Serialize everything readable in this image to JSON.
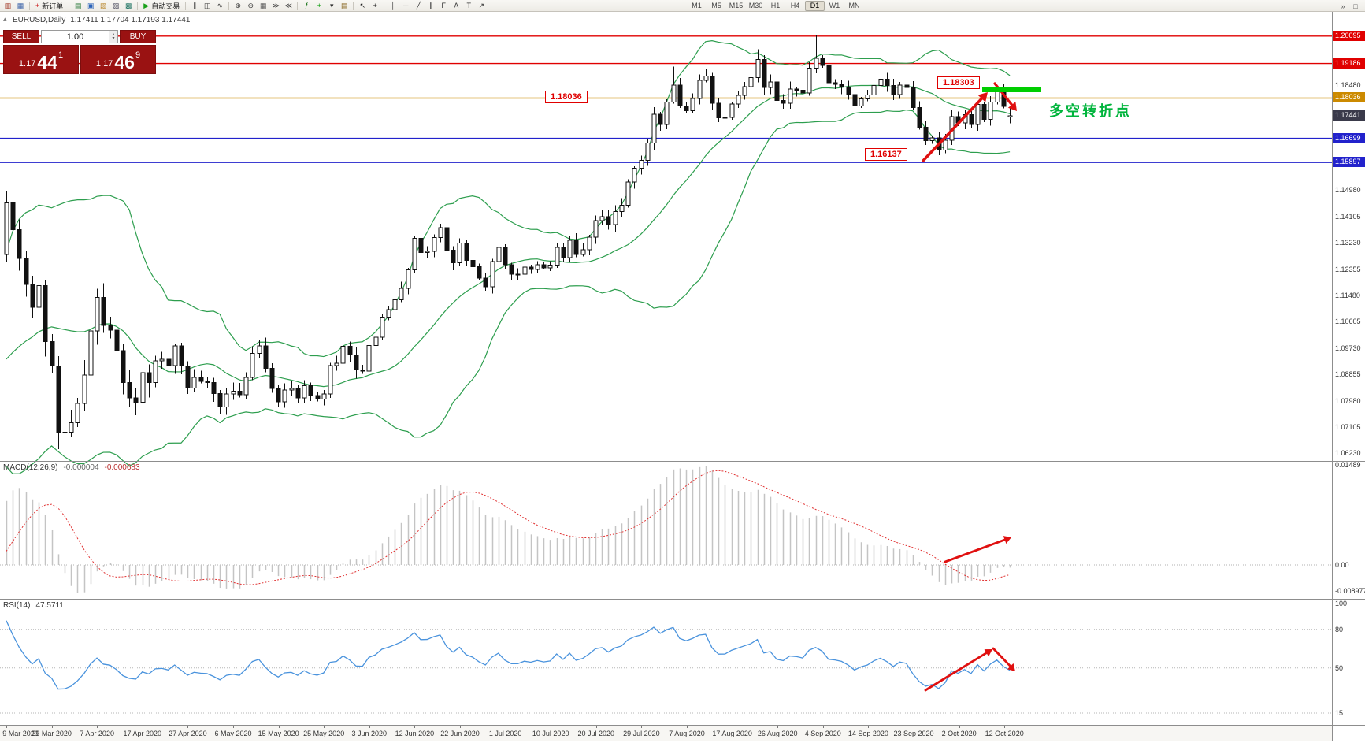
{
  "icons": {
    "one_click_toggle": "▴",
    "spin_up": "▴",
    "spin_down": "▾"
  },
  "toolbar": {
    "items": [
      {
        "name": "new-chart-icon",
        "glyph": "▥",
        "color": "#a33c2a"
      },
      {
        "name": "chart-profiles-icon",
        "glyph": "▦",
        "color": "#3a62a8"
      },
      {
        "type": "sep"
      },
      {
        "name": "new-order-button",
        "type": "button",
        "glyph": "+",
        "glyph_color": "#cc2222",
        "label": "新订单"
      },
      {
        "type": "sep"
      },
      {
        "name": "market-watch-icon",
        "glyph": "▤",
        "color": "#2a7a3a"
      },
      {
        "name": "data-window-icon",
        "glyph": "▣",
        "color": "#2a62b8"
      },
      {
        "name": "navigator-icon",
        "glyph": "▧",
        "color": "#b8862a"
      },
      {
        "name": "terminal-icon",
        "glyph": "▨",
        "color": "#555566"
      },
      {
        "name": "strategy-tester-icon",
        "glyph": "▩",
        "color": "#2a7a6a"
      },
      {
        "type": "sep"
      },
      {
        "name": "autotrading-button",
        "type": "button",
        "glyph": "▶",
        "glyph_color": "#1aa11a",
        "label": "自动交易"
      },
      {
        "type": "sep"
      },
      {
        "name": "bar-chart-icon",
        "glyph": "∥",
        "color": "#333333"
      },
      {
        "name": "candlestick-chart-icon",
        "glyph": "◫",
        "color": "#333333"
      },
      {
        "name": "line-chart-icon",
        "glyph": "∿",
        "color": "#333333"
      },
      {
        "type": "sep"
      },
      {
        "name": "zoom-in-icon",
        "glyph": "⊕",
        "color": "#333333"
      },
      {
        "name": "zoom-out-icon",
        "glyph": "⊖",
        "color": "#333333"
      },
      {
        "name": "tile-windows-icon",
        "glyph": "▦",
        "color": "#555555"
      },
      {
        "name": "auto-scroll-icon",
        "glyph": "≫",
        "color": "#333333"
      },
      {
        "name": "chart-shift-icon",
        "glyph": "≪",
        "color": "#333333"
      },
      {
        "type": "sep"
      },
      {
        "name": "indicators-icon",
        "glyph": "ƒ",
        "color": "#006600"
      },
      {
        "name": "add-indicator-icon",
        "glyph": "+",
        "color": "#009900"
      },
      {
        "name": "periods-list-icon",
        "glyph": "▾",
        "color": "#333333"
      },
      {
        "name": "templates-icon",
        "glyph": "▤",
        "color": "#886622"
      },
      {
        "type": "sep"
      },
      {
        "name": "cursor-icon",
        "glyph": "↖",
        "color": "#222222"
      },
      {
        "name": "crosshair-icon",
        "glyph": "+",
        "color": "#222222"
      },
      {
        "type": "sep"
      },
      {
        "name": "vertical-line-icon",
        "glyph": "│",
        "color": "#333333"
      },
      {
        "name": "horizontal-line-icon",
        "glyph": "─",
        "color": "#333333"
      },
      {
        "name": "trendline-icon",
        "glyph": "╱",
        "color": "#333333"
      },
      {
        "name": "equidistant-channel-icon",
        "glyph": "∥",
        "color": "#333333"
      },
      {
        "name": "fibonacci-icon",
        "glyph": "F",
        "color": "#333333"
      },
      {
        "name": "text-icon",
        "glyph": "A",
        "color": "#333333"
      },
      {
        "name": "text-label-icon",
        "glyph": "T",
        "color": "#333333"
      },
      {
        "name": "arrows-tool-icon",
        "glyph": "↗",
        "color": "#333333"
      }
    ],
    "timeframes": {
      "items": [
        "M1",
        "M5",
        "M15",
        "M30",
        "H1",
        "H4",
        "D1",
        "W1",
        "MN"
      ],
      "active": "D1"
    },
    "right_items": [
      {
        "name": "toolbar-overflow-icon",
        "glyph": "»",
        "color": "#555555"
      },
      {
        "name": "windows-icon",
        "glyph": "□",
        "color": "#555555"
      }
    ]
  },
  "chart": {
    "symbol_period": "EURUSD,Daily",
    "ohlc_text": "1.17411 1.17704 1.17193 1.17441"
  },
  "trade": {
    "sell_label": "SELL",
    "buy_label": "BUY",
    "lot": "1.00",
    "sell_price_prefix": "1.17",
    "sell_price_big": "44",
    "sell_price_sup": "1",
    "buy_price_prefix": "1.17",
    "buy_price_big": "46",
    "buy_price_sup": "9"
  },
  "annotations": {
    "price_box_1": "1.18036",
    "price_box_2": "1.18303",
    "price_box_3": "1.16137",
    "note_text": "多空转折点",
    "note_color": "#00b43c",
    "arrow_color": "#e01010",
    "highlight_bar_color": "#00ce00"
  },
  "chart_data": {
    "type": "candlestick",
    "symbol": "EURUSD",
    "timeframe": "Daily",
    "title_ohlc": {
      "open": "1.17411",
      "high": "1.17704",
      "low": "1.17193",
      "close": "1.17441"
    },
    "pre_closes": [
      1.091,
      1.0915,
      1.0873,
      1.084,
      1.0831,
      1.0836,
      1.0792,
      1.0786,
      1.0784,
      1.0785,
      1.0805,
      1.0851,
      1.0881,
      1.088,
      1.0887,
      1.0934,
      1.1028,
      1.1137,
      1.1138,
      1.1284
    ],
    "closes": [
      1.1456,
      1.1367,
      1.1271,
      1.1184,
      1.1109,
      1.118,
      1.0995,
      1.0914,
      1.0692,
      1.0694,
      1.0725,
      1.0789,
      1.0883,
      1.103,
      1.1141,
      1.1048,
      1.1033,
      1.0964,
      1.0858,
      1.0808,
      1.0793,
      1.0891,
      1.0858,
      1.093,
      1.0936,
      1.0915,
      1.098,
      1.0913,
      1.084,
      1.0875,
      1.0863,
      1.0858,
      1.0822,
      1.0777,
      1.082,
      1.083,
      1.0818,
      1.0875,
      1.0955,
      1.098,
      1.0906,
      1.0839,
      1.0795,
      1.0834,
      1.0839,
      1.0807,
      1.0848,
      1.0816,
      1.0803,
      1.082,
      1.0915,
      1.0923,
      1.0979,
      1.095,
      1.09,
      1.0897,
      1.0982,
      1.1009,
      1.1076,
      1.1101,
      1.1134,
      1.1172,
      1.1233,
      1.1337,
      1.1291,
      1.1294,
      1.134,
      1.1373,
      1.1298,
      1.1256,
      1.1322,
      1.1264,
      1.1244,
      1.1205,
      1.1177,
      1.126,
      1.1308,
      1.125,
      1.1218,
      1.1218,
      1.1242,
      1.1234,
      1.125,
      1.124,
      1.1248,
      1.1308,
      1.1274,
      1.1331,
      1.1284,
      1.13,
      1.1341,
      1.1397,
      1.141,
      1.1384,
      1.1427,
      1.1447,
      1.1525,
      1.157,
      1.1597,
      1.1655,
      1.175,
      1.1716,
      1.1791,
      1.1847,
      1.1778,
      1.1762,
      1.1802,
      1.1863,
      1.1877,
      1.1787,
      1.1738,
      1.1739,
      1.1784,
      1.1813,
      1.1842,
      1.1871,
      1.1932,
      1.1839,
      1.1857,
      1.1796,
      1.1786,
      1.1834,
      1.183,
      1.182,
      1.1903,
      1.1936,
      1.1912,
      1.1855,
      1.185,
      1.184,
      1.1815,
      1.1778,
      1.1801,
      1.1814,
      1.1846,
      1.1866,
      1.1846,
      1.1816,
      1.1847,
      1.1839,
      1.1772,
      1.1707,
      1.1662,
      1.1672,
      1.1631,
      1.1663,
      1.1742,
      1.1721,
      1.1748,
      1.1716,
      1.1783,
      1.1733,
      1.179,
      1.1826,
      1.1776
    ],
    "current_bar": [
      1.17411,
      1.17704,
      1.17193,
      1.17441
    ],
    "specials": {
      "0": {
        "high": 1.1495
      },
      "8": {
        "low": 1.0637
      },
      "103": {
        "high": 1.19085
      },
      "116": {
        "high": 1.19662
      },
      "125": {
        "high": 1.20113
      },
      "144": {
        "low": 1.16137
      },
      "153": {
        "high": 1.18303
      }
    },
    "bollinger": {
      "period": 20,
      "deviation": 2,
      "color": "#2d9e4e"
    },
    "horizontal_lines": [
      {
        "price": 1.20095,
        "color": "#e00000"
      },
      {
        "price": 1.19186,
        "color": "#e00000"
      },
      {
        "price": 1.18036,
        "color": "#cc8a00"
      },
      {
        "price": 1.16699,
        "color": "#2222cc"
      },
      {
        "price": 1.15897,
        "color": "#2222cc"
      }
    ],
    "current_price": {
      "value": 1.17441,
      "chip_color": "#3a3a4a"
    },
    "price_scale_labels": [
      "1.19355",
      "1.18480",
      "1.17605",
      "1.16730",
      "1.15855",
      "1.14980",
      "1.14105",
      "1.13230",
      "1.12355",
      "1.11480",
      "1.10605",
      "1.09730",
      "1.08855",
      "1.07980",
      "1.07105",
      "1.06230"
    ],
    "time_labels": [
      "9 Mar 2020",
      "29 Mar 2020",
      "7 Apr 2020",
      "17 Apr 2020",
      "27 Apr 2020",
      "6 May 2020",
      "15 May 2020",
      "25 May 2020",
      "3 Jun 2020",
      "12 Jun 2020",
      "22 Jun 2020",
      "1 Jul 2020",
      "10 Jul 2020",
      "20 Jul 2020",
      "29 Jul 2020",
      "7 Aug 2020",
      "17 Aug 2020",
      "26 Aug 2020",
      "4 Sep 2020",
      "14 Sep 2020",
      "23 Sep 2020",
      "2 Oct 2020",
      "12 Oct 2020"
    ],
    "macd": {
      "label": "MACD(12,26,9)",
      "value_main": "-0.000004",
      "value_signal": "-0.000683",
      "fast": 12,
      "slow": 26,
      "signal": 9,
      "scale_top": "0.01489",
      "scale_zero": "0.00",
      "scale_bottom": "-0.008977",
      "histogram_color": "#c4c4c4",
      "signal_color": "#e03030"
    },
    "rsi": {
      "label": "RSI(14)",
      "value": "47.5711",
      "period": 14,
      "levels": [
        100,
        80,
        50,
        15
      ],
      "line_color": "#4a93dd"
    }
  }
}
